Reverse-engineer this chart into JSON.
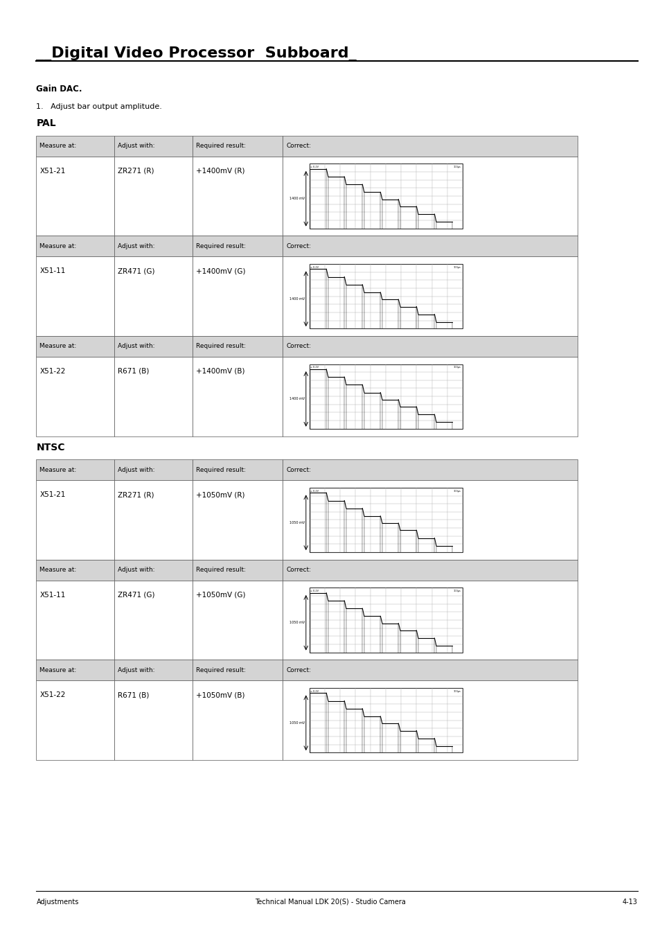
{
  "title": "__Digital Video Processor  Subboard_",
  "gain_dac_label": "Gain DAC.",
  "step1_label": "1.   Adjust bar output amplitude.",
  "pal_label": "PAL",
  "ntsc_label": "NTSC",
  "footer_left": "Adjustments",
  "footer_center": "Technical Manual LDK 20(S) - Studio Camera",
  "footer_right": "4-13",
  "col_headers": [
    "Measure at:",
    "Adjust with:",
    "Required result:",
    "Correct:"
  ],
  "pal_rows": [
    {
      "measure": "X51-21",
      "adjust": "ZR271 (R)",
      "result": "+1400mV (R)",
      "label": "1400 mV"
    },
    {
      "measure": "X51-11",
      "adjust": "ZR471 (G)",
      "result": "+1400mV (G)",
      "label": "1400 mV"
    },
    {
      "measure": "X51-22",
      "adjust": "R671 (B)",
      "result": "+1400mV (B)",
      "label": "1400 mV"
    }
  ],
  "ntsc_rows": [
    {
      "measure": "X51-21",
      "adjust": "ZR271 (R)",
      "result": "+1050mV (R)",
      "label": "1050 mV"
    },
    {
      "measure": "X51-11",
      "adjust": "ZR471 (G)",
      "result": "+1050mV (G)",
      "label": "1050 mV"
    },
    {
      "measure": "X51-22",
      "adjust": "R671 (B)",
      "result": "+1050mV (B)",
      "label": "1050 mV"
    }
  ],
  "header_bg": "#d4d4d4",
  "row_bg": "#ffffff",
  "border_color": "#555555",
  "text_color": "#000000",
  "page_bg": "#ffffff"
}
